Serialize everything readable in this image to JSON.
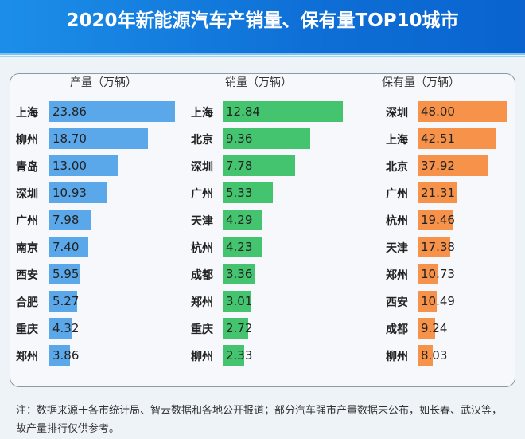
{
  "chart_data": {
    "type": "bar",
    "title": "2020年新能源汽车产销量、保有量TOP10城市",
    "colors": [
      "#5aa8ea",
      "#45c46f",
      "#f6924a"
    ],
    "charts": [
      {
        "title": "产量（万辆）",
        "categories": [
          "上海",
          "柳州",
          "青岛",
          "深圳",
          "广州",
          "南京",
          "西安",
          "合肥",
          "重庆",
          "郑州"
        ],
        "values": [
          23.86,
          18.7,
          13.0,
          10.93,
          7.98,
          7.4,
          5.95,
          5.27,
          4.32,
          3.86
        ]
      },
      {
        "title": "销量（万辆）",
        "categories": [
          "上海",
          "北京",
          "深圳",
          "广州",
          "天津",
          "杭州",
          "成都",
          "郑州",
          "重庆",
          "柳州"
        ],
        "values": [
          12.84,
          9.36,
          7.78,
          5.33,
          4.29,
          4.23,
          3.36,
          3.01,
          2.72,
          2.33
        ]
      },
      {
        "title": "保有量（万辆）",
        "categories": [
          "深圳",
          "上海",
          "北京",
          "广州",
          "杭州",
          "天津",
          "郑州",
          "西安",
          "成都",
          "柳州"
        ],
        "values": [
          48.0,
          42.51,
          37.92,
          21.31,
          19.46,
          17.38,
          10.73,
          10.49,
          9.24,
          8.03
        ]
      }
    ],
    "note": "注：数据来源于各市统计局、智云数据和各地公开报道；部分汽车强市产量数据未公布，如长春、武汉等，故产量排行仅供参考。"
  }
}
